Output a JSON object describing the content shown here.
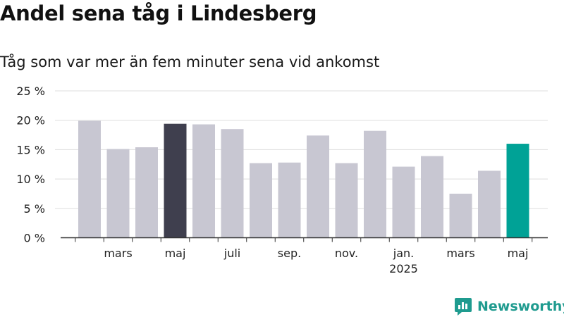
{
  "title": "Andel sena tåg i Lindesberg",
  "subtitle": "Tåg som var mer än fem minuter sena vid ankomst",
  "brand": "Newsworthy",
  "colors": {
    "bar_default": "#c8c7d2",
    "bar_highlight_dark": "#3f3f4e",
    "bar_highlight_teal": "#00a296",
    "grid": "#dedede",
    "axis": "#333333",
    "brand": "#1f9b8f"
  },
  "chart_data": {
    "type": "bar",
    "title": "Andel sena tåg i Lindesberg",
    "subtitle": "Tåg som var mer än fem minuter sena vid ankomst",
    "ylim": [
      0,
      25
    ],
    "yticks": [
      0,
      5,
      10,
      15,
      20,
      25
    ],
    "ytick_labels": [
      "0 %",
      "5 %",
      "10 %",
      "15 %",
      "20 %",
      "25 %"
    ],
    "grid": true,
    "categories": [
      "2024-02",
      "2024-03",
      "2024-04",
      "2024-05",
      "2024-06",
      "2024-07",
      "2024-08",
      "2024-09",
      "2024-10",
      "2024-11",
      "2024-12",
      "2025-01",
      "2025-02",
      "2025-03",
      "2025-04",
      "2025-05"
    ],
    "values": [
      19.9,
      15.1,
      15.4,
      19.4,
      19.3,
      18.5,
      12.7,
      12.8,
      17.4,
      12.7,
      18.2,
      12.1,
      13.9,
      7.5,
      11.4,
      16.0
    ],
    "highlight": [
      "",
      "",
      "",
      "dark",
      "",
      "",
      "",
      "",
      "",
      "",
      "",
      "",
      "",
      "",
      "",
      "teal"
    ],
    "xtick_labels": [
      {
        "category": "2024-03",
        "label": "mars"
      },
      {
        "category": "2024-05",
        "label": "maj"
      },
      {
        "category": "2024-07",
        "label": "juli"
      },
      {
        "category": "2024-09",
        "label": "sep."
      },
      {
        "category": "2024-11",
        "label": "nov."
      },
      {
        "category": "2025-01",
        "label": "jan.",
        "sub": "2025"
      },
      {
        "category": "2025-03",
        "label": "mars"
      },
      {
        "category": "2025-05",
        "label": "maj"
      }
    ]
  }
}
